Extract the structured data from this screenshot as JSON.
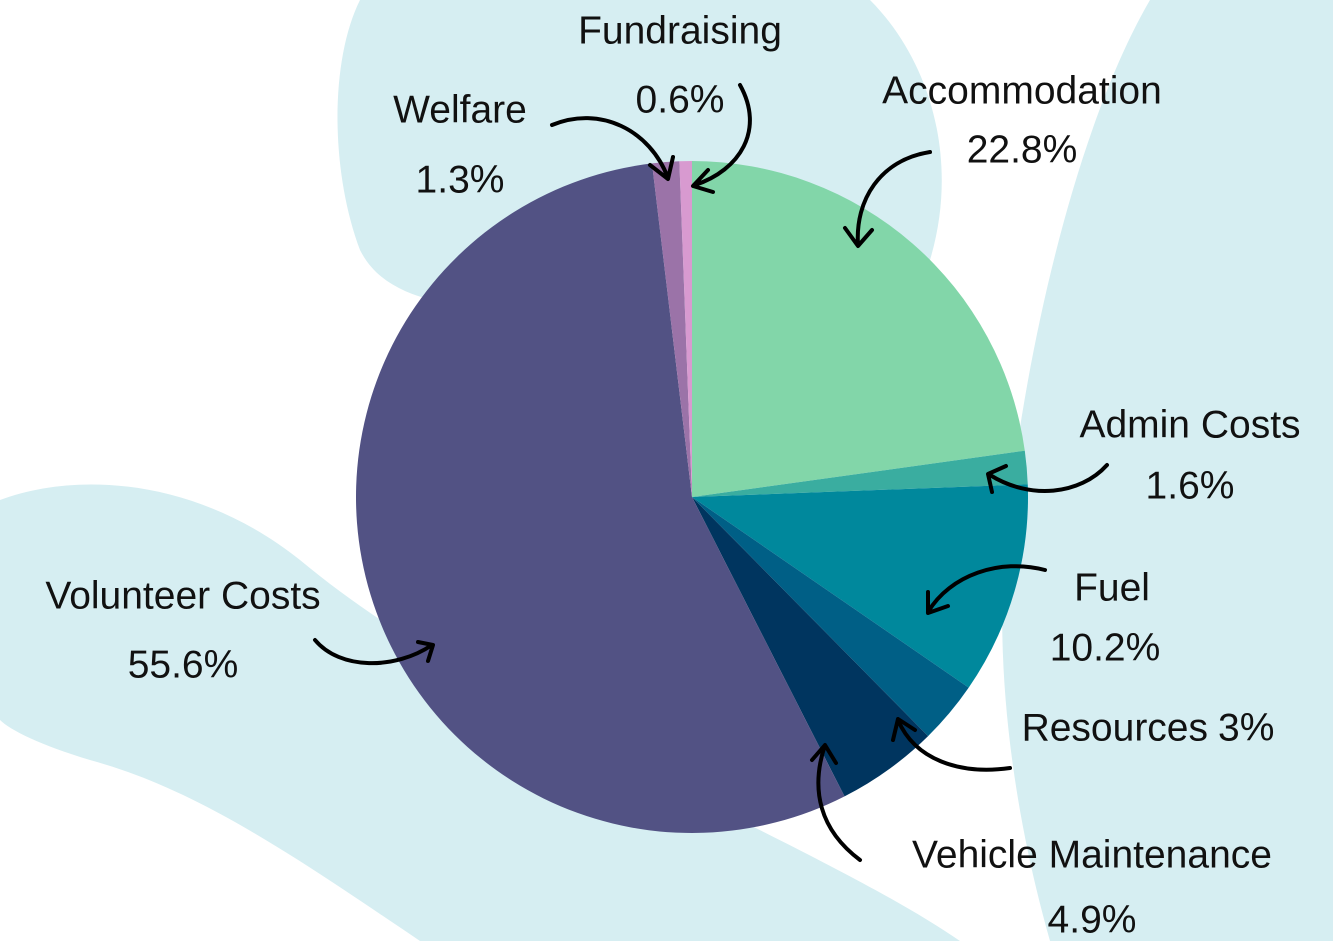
{
  "chart_data": {
    "type": "pie",
    "categories": [
      "Accommodation",
      "Admin Costs",
      "Fuel",
      "Resources",
      "Vehicle Maintenance",
      "Volunteer Costs",
      "Welfare",
      "Fundraising"
    ],
    "values": [
      22.8,
      1.6,
      10.2,
      3,
      4.9,
      55.6,
      1.3,
      0.6
    ],
    "value_labels": [
      "22.8%",
      "1.6%",
      "10.2%",
      "3%",
      "4.9%",
      "55.6%",
      "1.3%",
      "0.6%"
    ],
    "colors": [
      "#82d6a9",
      "#3aada0",
      "#00889c",
      "#005f86",
      "#00355f",
      "#525284",
      "#9b73a8",
      "#d89ad0"
    ]
  }
}
